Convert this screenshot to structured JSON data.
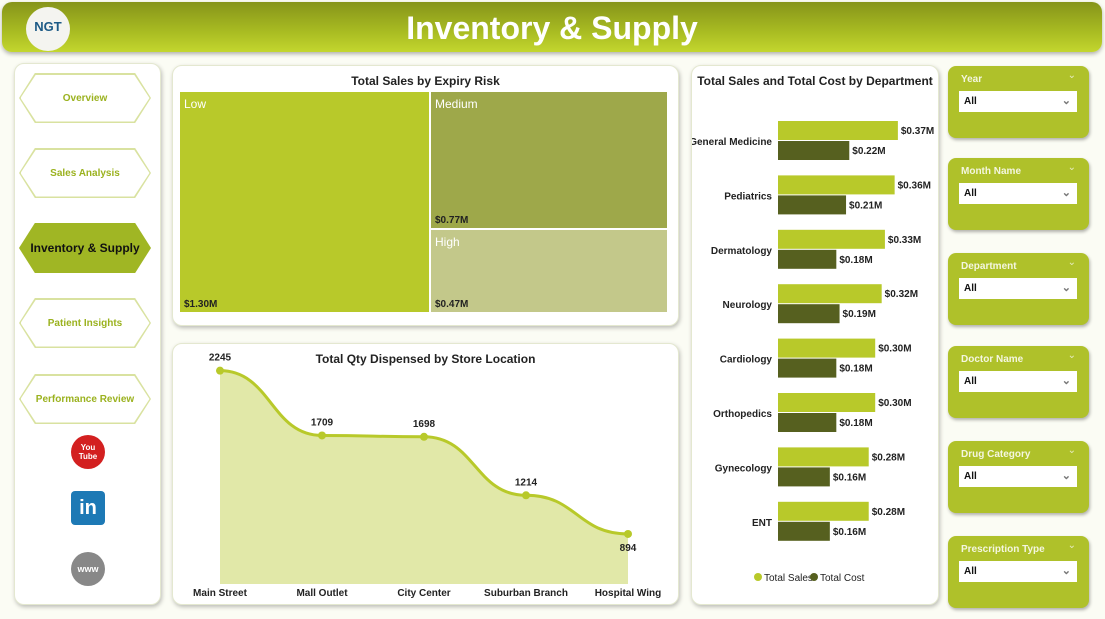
{
  "header": {
    "title": "Inventory & Supply",
    "logo_text": "NGT"
  },
  "nav": [
    {
      "label": "Overview"
    },
    {
      "label": "Sales Analysis"
    },
    {
      "label": "Inventory & Supply",
      "active": true
    },
    {
      "label": "Patient Insights"
    },
    {
      "label": "Performance Review"
    }
  ],
  "social": {
    "youtube": "You Tube",
    "linkedin": "in",
    "web": "www"
  },
  "treemap": {
    "title": "Total Sales by Expiry Risk",
    "tiles": [
      {
        "name": "Low",
        "value": "$1.30M"
      },
      {
        "name": "Medium",
        "value": "$0.77M"
      },
      {
        "name": "High",
        "value": "$0.47M"
      }
    ]
  },
  "chart_data": [
    {
      "type": "area",
      "title": "Total Qty Dispensed by Store Location",
      "categories": [
        "Main Street",
        "Mall Outlet",
        "City Center",
        "Suburban Branch",
        "Hospital Wing"
      ],
      "values": [
        2245,
        1709,
        1698,
        1214,
        894
      ],
      "labels": [
        "2245",
        "1709",
        "1698",
        "1214",
        "894"
      ],
      "ylim": [
        480,
        2300
      ]
    },
    {
      "type": "bar",
      "title": "Total Sales and Total Cost by Department",
      "categories": [
        "General Medicine",
        "Pediatrics",
        "Dermatology",
        "Neurology",
        "Cardiology",
        "Orthopedics",
        "Gynecology",
        "ENT"
      ],
      "series": [
        {
          "name": "Total Sales",
          "color": "#b8c92a",
          "values": [
            0.37,
            0.36,
            0.33,
            0.32,
            0.3,
            0.3,
            0.28,
            0.28
          ],
          "labels": [
            "$0.37M",
            "$0.36M",
            "$0.33M",
            "$0.32M",
            "$0.30M",
            "$0.30M",
            "$0.28M",
            "$0.28M"
          ]
        },
        {
          "name": "Total Cost",
          "color": "#56601f",
          "values": [
            0.22,
            0.21,
            0.18,
            0.19,
            0.18,
            0.18,
            0.16,
            0.16
          ],
          "labels": [
            "$0.22M",
            "$0.21M",
            "$0.18M",
            "$0.19M",
            "$0.18M",
            "$0.18M",
            "$0.16M",
            "$0.16M"
          ]
        }
      ],
      "legend": "bottom"
    }
  ],
  "filters": [
    {
      "label": "Year",
      "value": "All"
    },
    {
      "label": "Month Name",
      "value": "All"
    },
    {
      "label": "Department",
      "value": "All"
    },
    {
      "label": "Doctor Name",
      "value": "All"
    },
    {
      "label": "Drug Category",
      "value": "All"
    },
    {
      "label": "Prescription Type",
      "value": "All"
    }
  ]
}
